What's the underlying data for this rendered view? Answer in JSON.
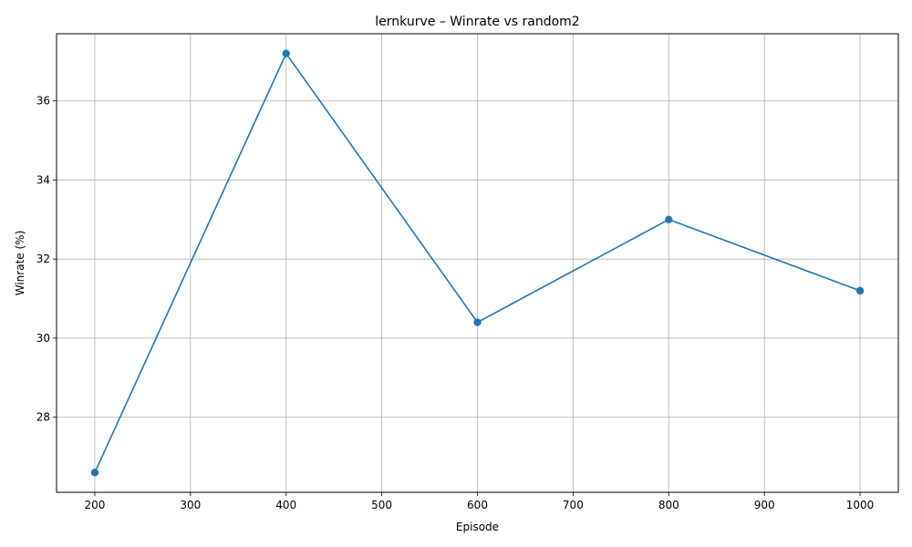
{
  "colors": {
    "series": "#1f77b4",
    "grid": "#b0b0b0",
    "axis": "#000000",
    "background": "#ffffff"
  },
  "chart_data": {
    "type": "line",
    "title": "lernkurve – Winrate vs random2",
    "xlabel": "Episode",
    "ylabel": "Winrate (%)",
    "xlim": [
      160,
      1040
    ],
    "ylim": [
      26.1,
      37.7
    ],
    "xticks": [
      200,
      300,
      400,
      500,
      600,
      700,
      800,
      900,
      1000
    ],
    "yticks": [
      28,
      30,
      32,
      34,
      36
    ],
    "grid": true,
    "marker": "circle",
    "series": [
      {
        "x": [
          200,
          400,
          600,
          800,
          1000
        ],
        "y": [
          26.6,
          37.2,
          30.4,
          33.0,
          31.2
        ]
      }
    ]
  }
}
